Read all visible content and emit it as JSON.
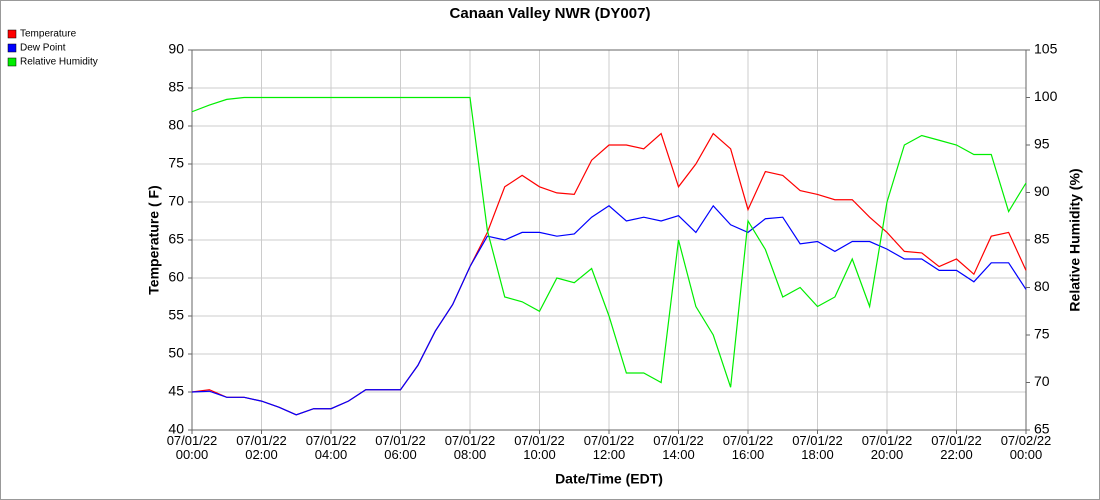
{
  "chart_data": {
    "type": "line",
    "title": "Canaan Valley NWR (DY007)",
    "x_label": "Date/Time (EDT)",
    "y_label": "Temperature ( F)",
    "y2_label": "Relative Humidity (%)",
    "x": [
      0,
      0.5,
      1,
      1.5,
      2,
      2.5,
      3,
      3.5,
      4,
      4.5,
      5,
      5.5,
      6,
      6.5,
      7,
      7.5,
      8,
      8.5,
      9,
      9.5,
      10,
      10.5,
      11,
      11.5,
      12,
      12.5,
      13,
      13.5,
      14,
      14.5,
      15,
      15.5,
      16,
      16.5,
      17,
      17.5,
      18,
      18.5,
      19,
      19.5,
      20,
      20.5,
      21,
      21.5,
      22,
      22.5,
      23,
      23.5,
      24
    ],
    "xlim": [
      0,
      24
    ],
    "xticks": [
      {
        "value": 0,
        "label": "07/01/22\n00:00"
      },
      {
        "value": 2,
        "label": "07/01/22\n02:00"
      },
      {
        "value": 4,
        "label": "07/01/22\n04:00"
      },
      {
        "value": 6,
        "label": "07/01/22\n06:00"
      },
      {
        "value": 8,
        "label": "07/01/22\n08:00"
      },
      {
        "value": 10,
        "label": "07/01/22\n10:00"
      },
      {
        "value": 12,
        "label": "07/01/22\n12:00"
      },
      {
        "value": 14,
        "label": "07/01/22\n14:00"
      },
      {
        "value": 16,
        "label": "07/01/22\n16:00"
      },
      {
        "value": 18,
        "label": "07/01/22\n18:00"
      },
      {
        "value": 20,
        "label": "07/01/22\n20:00"
      },
      {
        "value": 22,
        "label": "07/01/22\n22:00"
      },
      {
        "value": 24,
        "label": "07/02/22\n00:00"
      }
    ],
    "ylim": [
      40,
      90
    ],
    "yticks": [
      40,
      45,
      50,
      55,
      60,
      65,
      70,
      75,
      80,
      85,
      90
    ],
    "y2lim": [
      65,
      105
    ],
    "y2ticks": [
      65,
      70,
      75,
      80,
      85,
      90,
      95,
      100,
      105
    ],
    "grid": true,
    "legend": "top-left",
    "series": [
      {
        "name": "Temperature",
        "color": "#ff0000",
        "values": [
          45,
          45.3,
          44.3,
          44.3,
          43.8,
          43,
          42,
          42.8,
          42.8,
          43.8,
          45.3,
          45.3,
          45.3,
          48.5,
          53,
          56.5,
          61.5,
          66,
          72,
          73.5,
          72,
          71.2,
          71,
          75.5,
          77.5,
          77.5,
          77,
          79,
          72,
          75,
          79,
          77,
          69,
          74,
          73.5,
          71.5,
          71,
          70.3,
          70.3,
          68,
          66,
          63.5,
          63.3,
          61.5,
          62.5,
          60.5,
          65.5,
          66,
          61
        ]
      },
      {
        "name": "Dew Point",
        "color": "#0000ff",
        "values": [
          45,
          45.1,
          44.3,
          44.3,
          43.8,
          43,
          42,
          42.8,
          42.8,
          43.8,
          45.3,
          45.3,
          45.3,
          48.5,
          53,
          56.5,
          61.5,
          65.5,
          65,
          66,
          66,
          65.5,
          65.8,
          68,
          69.5,
          67.5,
          68,
          67.5,
          68.2,
          66,
          69.5,
          67,
          66,
          67.8,
          68,
          64.5,
          64.8,
          63.5,
          64.8,
          64.8,
          63.8,
          62.5,
          62.5,
          61,
          61,
          59.5,
          62,
          62,
          58.5
        ]
      },
      {
        "name": "Relative Humidity",
        "color": "#00ee00",
        "axis": "y2",
        "values": [
          98.5,
          99.2,
          99.8,
          100,
          100,
          100,
          100,
          100,
          100,
          100,
          100,
          100,
          100,
          100,
          100,
          100,
          100,
          86,
          79,
          78.5,
          77.5,
          81,
          80.5,
          82,
          77,
          71,
          71,
          70,
          85,
          78,
          75,
          69.5,
          87,
          84,
          79,
          80,
          78,
          79,
          83,
          78,
          89,
          95,
          96,
          95.5,
          95,
          94,
          94,
          88,
          91
        ]
      }
    ]
  }
}
